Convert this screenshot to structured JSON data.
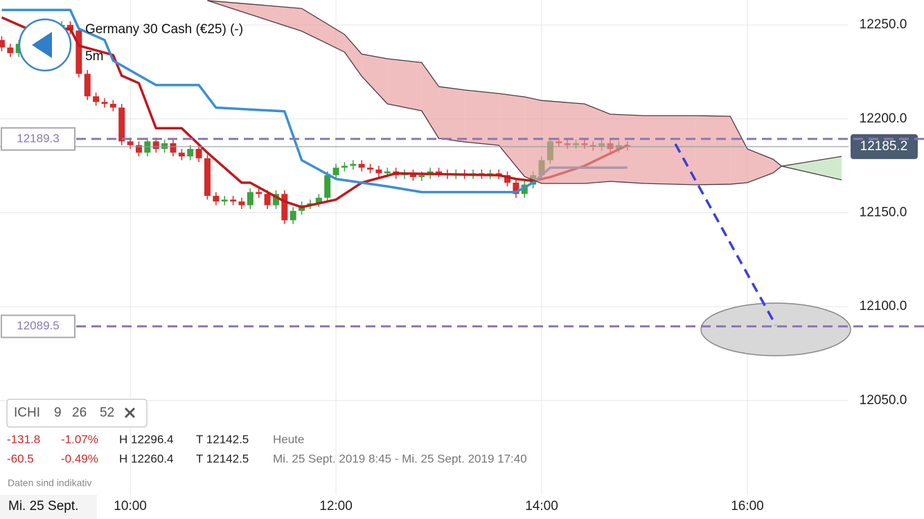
{
  "chart_data": {
    "type": "candlestick",
    "title": "Germany 30 Cash (€25) (-)",
    "subtitle": "5m",
    "date_label": "Mi. 25 Sept.",
    "note": "Daten sind indikativ",
    "xlim": [
      524,
      1019
    ],
    "ylim": [
      11999.8,
      12263.3
    ],
    "xticks": [
      {
        "value": 600,
        "label": "10:00"
      },
      {
        "value": 720,
        "label": "12:00"
      },
      {
        "value": 840,
        "label": "14:00"
      },
      {
        "value": 960,
        "label": "16:00"
      }
    ],
    "yticks": [
      {
        "value": 12050,
        "label": "12050.0"
      },
      {
        "value": 12100,
        "label": "12100.0"
      },
      {
        "value": 12150,
        "label": "12150.0"
      },
      {
        "value": 12200,
        "label": "12200.0"
      },
      {
        "value": 12250,
        "label": "12250.0"
      }
    ],
    "grid": true,
    "up_color": "#3aa33d",
    "down_color": "#d42a2a",
    "x": [
      525,
      530,
      535,
      540,
      545,
      550,
      555,
      560,
      565,
      570,
      575,
      580,
      585,
      590,
      595,
      600,
      605,
      610,
      615,
      620,
      625,
      630,
      635,
      640,
      645,
      650,
      655,
      660,
      665,
      670,
      675,
      680,
      685,
      690,
      695,
      700,
      705,
      710,
      715,
      720,
      725,
      730,
      735,
      740,
      745,
      750,
      755,
      760,
      765,
      770,
      775,
      780,
      785,
      790,
      795,
      800,
      805,
      810,
      815,
      820,
      825,
      830,
      835,
      840,
      845,
      850,
      855,
      860,
      865,
      870,
      875,
      880,
      885,
      890
    ],
    "open": [
      12242,
      12238,
      12235,
      12240,
      12245,
      12244,
      12247,
      12249,
      12250,
      12247,
      12224,
      12212,
      12209,
      12208,
      12206,
      12188,
      12186,
      12182,
      12188,
      12184,
      12187,
      12182,
      12180,
      12184,
      12179,
      12159,
      12156,
      12157,
      12156,
      12154,
      12161,
      12160,
      12154,
      12160,
      12146,
      12151,
      12154,
      12155,
      12158,
      12170,
      12174,
      12175,
      12176,
      12174,
      12173,
      12171,
      12172,
      12170,
      12171,
      12169,
      12170,
      12172,
      12171,
      12170,
      12171,
      12170,
      12171,
      12170,
      12171,
      12170,
      12166,
      12160,
      12165,
      12170,
      12178,
      12188,
      12187,
      12186,
      12187,
      12186,
      12185,
      12187,
      12184,
      12186
    ],
    "high": [
      12244,
      12240,
      12242,
      12247,
      12247,
      12249,
      12251,
      12252,
      12252,
      12249,
      12226,
      12214,
      12211,
      12210,
      12208,
      12190,
      12188,
      12190,
      12190,
      12189,
      12189,
      12184,
      12186,
      12186,
      12181,
      12161,
      12159,
      12159,
      12158,
      12163,
      12163,
      12162,
      12162,
      12162,
      12153,
      12156,
      12157,
      12160,
      12172,
      12176,
      12177,
      12178,
      12178,
      12176,
      12175,
      12174,
      12174,
      12173,
      12173,
      12172,
      12174,
      12174,
      12173,
      12173,
      12173,
      12173,
      12173,
      12173,
      12173,
      12172,
      12168,
      12167,
      12172,
      12180,
      12190,
      12190,
      12189,
      12189,
      12189,
      12188,
      12189,
      12189,
      12188,
      12188
    ],
    "low": [
      12236,
      12233,
      12233,
      12238,
      12242,
      12242,
      12245,
      12247,
      12245,
      12222,
      12210,
      12207,
      12206,
      12204,
      12186,
      12184,
      12180,
      12180,
      12182,
      12182,
      12180,
      12178,
      12178,
      12177,
      12157,
      12154,
      12154,
      12154,
      12152,
      12152,
      12158,
      12152,
      12152,
      12144,
      12144,
      12149,
      12152,
      12153,
      12156,
      12168,
      12172,
      12173,
      12172,
      12171,
      12169,
      12169,
      12168,
      12168,
      12167,
      12167,
      12168,
      12169,
      12168,
      12168,
      12168,
      12168,
      12168,
      12168,
      12168,
      12164,
      12158,
      12158,
      12163,
      12168,
      12176,
      12185,
      12184,
      12184,
      12184,
      12183,
      12183,
      12182,
      12182,
      12183.2
    ],
    "close": [
      12238,
      12235,
      12240,
      12245,
      12244,
      12247,
      12249,
      12250,
      12247,
      12224,
      12212,
      12209,
      12208,
      12206,
      12188,
      12186,
      12182,
      12188,
      12184,
      12187,
      12182,
      12180,
      12184,
      12179,
      12159,
      12156,
      12157,
      12156,
      12154,
      12161,
      12160,
      12154,
      12160,
      12146,
      12151,
      12154,
      12155,
      12158,
      12170,
      12174,
      12175,
      12176,
      12174,
      12173,
      12171,
      12172,
      12170,
      12171,
      12169,
      12170,
      12172,
      12171,
      12170,
      12171,
      12170,
      12171,
      12170,
      12171,
      12170,
      12166,
      12160,
      12165,
      12170,
      12178,
      12188,
      12187,
      12186,
      12187,
      12186,
      12185,
      12187,
      12184,
      12186,
      12185.2
    ],
    "lines": [
      {
        "color": "#c0181c",
        "x": [
          525,
          540,
          565,
          570,
          590,
          595,
          605,
          615,
          630,
          645,
          665,
          670,
          690,
          700,
          720,
          735,
          755,
          815,
          825,
          835,
          845,
          865,
          890
        ],
        "values": [
          12254,
          12248,
          12248,
          12239,
          12234,
          12223,
          12219,
          12195,
          12195,
          12182,
          12166,
          12166,
          12156,
          12153,
          12157,
          12166,
          12171,
          12170,
          12168,
          12167,
          12169,
          12175,
          12186
        ]
      },
      {
        "color": "#3b8fd4",
        "x": [
          525,
          565,
          570,
          585,
          590,
          615,
          640,
          650,
          690,
          700,
          720,
          750,
          770,
          825,
          835,
          845,
          890
        ],
        "values": [
          12258,
          12258,
          12248,
          12242,
          12231,
          12218,
          12218,
          12206,
          12204,
          12178,
          12168,
          12164,
          12161,
          12161,
          12166,
          12174,
          12174
        ]
      }
    ],
    "cloud": {
      "x": [
        645,
        700,
        725,
        735,
        750,
        770,
        780,
        795,
        815,
        830,
        840,
        865,
        880,
        900,
        930,
        950,
        960,
        975,
        980,
        1015
      ],
      "span_a": [
        12263,
        12246.7,
        12235.6,
        12222.7,
        12208,
        12204.3,
        12189.6,
        12187.7,
        12185.9,
        12169.3,
        12165.6,
        12165.6,
        12166.7,
        12165.6,
        12164.9,
        12165.2,
        12166,
        12171.2,
        12174.8,
        12180
      ],
      "span_b": [
        12263,
        12258.8,
        12245,
        12234.5,
        12232,
        12230,
        12217.2,
        12215.4,
        12213.5,
        12211.7,
        12209.8,
        12208,
        12202.5,
        12201.7,
        12201.7,
        12201.4,
        12184,
        12178.5,
        12174.8,
        12167.5
      ],
      "bear_color": "#e89b9b",
      "bull_color": "#b8dfb4",
      "edge_color": "#4e3a40"
    },
    "levels": [
      12189.3,
      12089.5
    ],
    "level_color": "#8a78b4",
    "last_price": 12185.2,
    "indicator": {
      "name": "ICHI",
      "params": [
        9,
        26,
        52
      ]
    },
    "stats": [
      {
        "change": "-131.8",
        "change_pct": "-1.07%",
        "high": "H 12296.4",
        "low": "T 12142.5",
        "period": "Heute"
      },
      {
        "change": "-60.5",
        "change_pct": "-0.49%",
        "high": "H 12260.4",
        "low": "T 12142.5",
        "period": "Mi. 25 Sept. 2019 8:45 - Mi. 25 Sept. 2019 17:40"
      }
    ]
  }
}
